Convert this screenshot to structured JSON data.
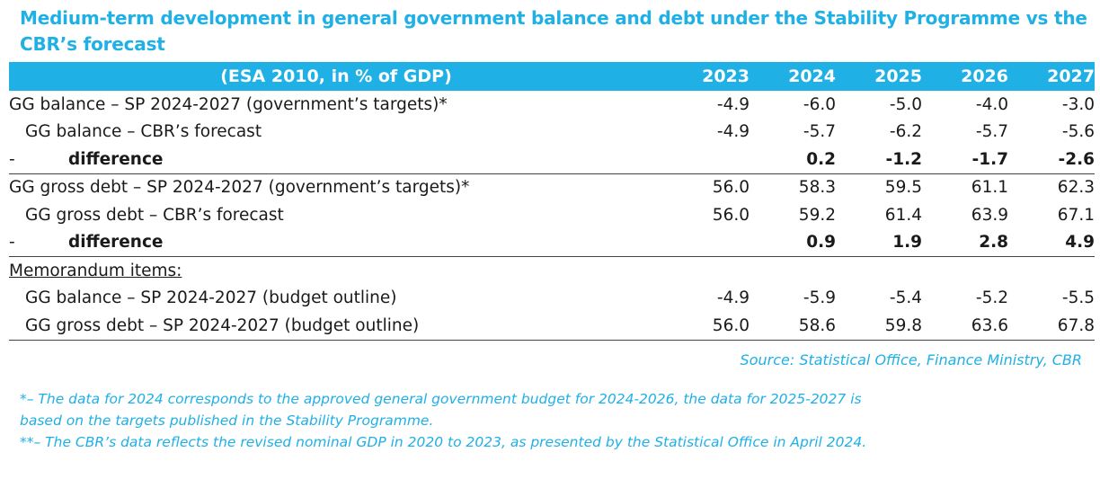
{
  "title": "Medium-term development in general government balance and debt under the Stability Programme vs the CBR’s forecast",
  "table": {
    "header_label": "(ESA 2010, in % of GDP)",
    "years": [
      "2023",
      "2024",
      "2025",
      "2026",
      "2027"
    ],
    "balance_sp": {
      "label": "GG balance – SP 2024-2027 (government’s targets)*",
      "values": [
        "-4.9",
        "-6.0",
        "-5.0",
        "-4.0",
        "-3.0"
      ]
    },
    "balance_cbr": {
      "label": "GG balance – CBR’s forecast",
      "values": [
        "-4.9",
        "-5.7",
        "-6.2",
        "-5.7",
        "-5.6"
      ]
    },
    "balance_diff": {
      "dash": "-",
      "label": "difference",
      "values": [
        "",
        "0.2",
        "-1.2",
        "-1.7",
        "-2.6"
      ]
    },
    "debt_sp": {
      "label": "GG gross debt – SP 2024-2027 (government’s targets)*",
      "values": [
        "56.0",
        "58.3",
        "59.5",
        "61.1",
        "62.3"
      ]
    },
    "debt_cbr": {
      "label": "GG gross debt – CBR’s forecast",
      "values": [
        "56.0",
        "59.2",
        "61.4",
        "63.9",
        "67.1"
      ]
    },
    "debt_diff": {
      "dash": "-",
      "label": "difference",
      "values": [
        "",
        "0.9",
        "1.9",
        "2.8",
        "4.9"
      ]
    },
    "memo_label": "Memorandum items:",
    "memo_balance": {
      "label": "GG balance – SP 2024-2027 (budget outline)",
      "values": [
        "-4.9",
        "-5.9",
        "-5.4",
        "-5.2",
        "-5.5"
      ]
    },
    "memo_debt": {
      "label": "GG gross debt – SP 2024-2027 (budget outline)",
      "values": [
        "56.0",
        "58.6",
        "59.8",
        "63.6",
        "67.8"
      ]
    }
  },
  "source": "Source: Statistical Office, Finance Ministry, CBR",
  "footnotes": {
    "note1": "*– The data for 2024 corresponds to the approved general government budget for 2024-2026, the data for 2025-2027 is based on the targets published in the Stability Programme.",
    "note2": "**– The CBR’s data reflects the revised nominal GDP in 2020 to 2023, as presented by the Statistical Office in April 2024."
  }
}
